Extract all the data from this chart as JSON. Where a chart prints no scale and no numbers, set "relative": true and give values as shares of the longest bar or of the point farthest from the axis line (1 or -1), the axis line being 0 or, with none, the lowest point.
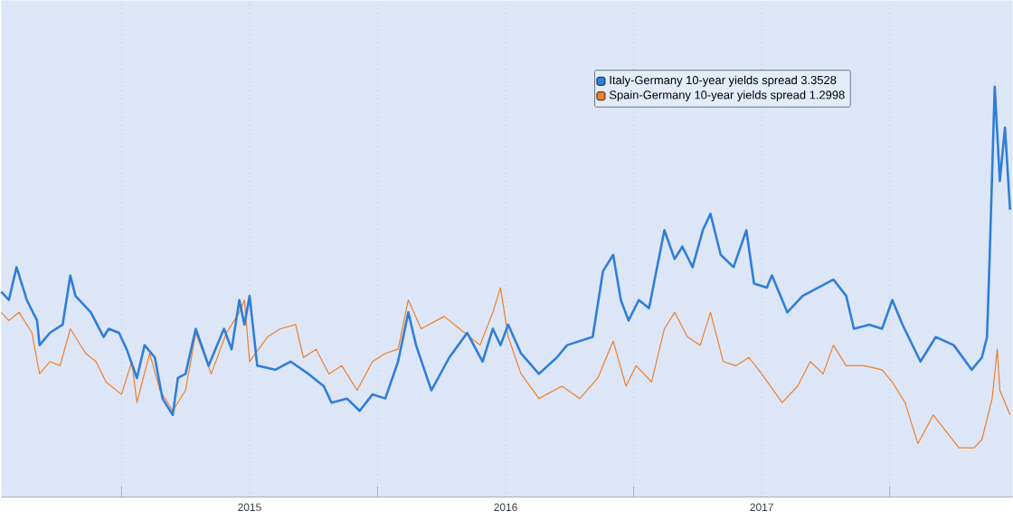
{
  "chart_data": {
    "type": "line",
    "relative": true,
    "grid": true,
    "legend": "top right",
    "marker": "none",
    "line_style": "solid",
    "xlim": [
      2014.53,
      2018.48
    ],
    "xticks": [
      {
        "value": 2015,
        "label": null
      },
      {
        "value": 2015.5,
        "label": "2015"
      },
      {
        "value": 2016,
        "label": null
      },
      {
        "value": 2016.5,
        "label": "2016"
      },
      {
        "value": 2017,
        "label": null
      },
      {
        "value": 2017.5,
        "label": "2017"
      },
      {
        "value": 2018,
        "label": null
      }
    ],
    "series": [
      {
        "name": "Italy-Germany 10-year yields spread 3.3528",
        "color": "#2f7ed8",
        "x": [
          2014.53,
          2014.56,
          2014.59,
          2014.63,
          2014.67,
          2014.68,
          2014.72,
          2014.77,
          2014.8,
          2014.82,
          2014.88,
          2014.93,
          2014.95,
          2014.99,
          2015.02,
          2015.06,
          2015.09,
          2015.13,
          2015.16,
          2015.2,
          2015.22,
          2015.25,
          2015.29,
          2015.34,
          2015.4,
          2015.43,
          2015.46,
          2015.48,
          2015.5,
          2015.53,
          2015.6,
          2015.66,
          2015.73,
          2015.79,
          2015.82,
          2015.88,
          2015.93,
          2015.98,
          2016.03,
          2016.08,
          2016.12,
          2016.15,
          2016.21,
          2016.28,
          2016.35,
          2016.41,
          2016.45,
          2016.48,
          2016.51,
          2016.56,
          2016.63,
          2016.7,
          2016.74,
          2016.84,
          2016.88,
          2016.92,
          2016.95,
          2016.98,
          2017.02,
          2017.06,
          2017.12,
          2017.16,
          2017.19,
          2017.23,
          2017.27,
          2017.3,
          2017.34,
          2017.39,
          2017.44,
          2017.47,
          2017.52,
          2017.54,
          2017.6,
          2017.66,
          2017.72,
          2017.78,
          2017.83,
          2017.86,
          2017.92,
          2017.97,
          2018.01,
          2018.05,
          2018.12,
          2018.18,
          2018.25,
          2018.32,
          2018.36,
          2018.38,
          2018.39,
          2018.41,
          2018.43,
          2018.45,
          2018.47
        ],
        "values": [
          0.5,
          0.48,
          0.56,
          0.48,
          0.43,
          0.37,
          0.4,
          0.42,
          0.54,
          0.49,
          0.45,
          0.39,
          0.41,
          0.4,
          0.36,
          0.29,
          0.37,
          0.34,
          0.24,
          0.2,
          0.29,
          0.3,
          0.41,
          0.32,
          0.41,
          0.36,
          0.48,
          0.42,
          0.49,
          0.32,
          0.31,
          0.33,
          0.3,
          0.27,
          0.23,
          0.24,
          0.21,
          0.25,
          0.24,
          0.33,
          0.45,
          0.37,
          0.26,
          0.34,
          0.4,
          0.33,
          0.41,
          0.37,
          0.42,
          0.35,
          0.3,
          0.34,
          0.37,
          0.39,
          0.55,
          0.59,
          0.48,
          0.43,
          0.48,
          0.46,
          0.65,
          0.58,
          0.61,
          0.56,
          0.65,
          0.69,
          0.59,
          0.56,
          0.65,
          0.52,
          0.51,
          0.54,
          0.45,
          0.49,
          0.51,
          0.53,
          0.49,
          0.41,
          0.42,
          0.41,
          0.48,
          0.42,
          0.33,
          0.39,
          0.37,
          0.31,
          0.34,
          0.39,
          0.58,
          1.0,
          0.77,
          0.9,
          0.7
        ]
      },
      {
        "name": "Spain-Germany 10-year yields spread 1.2998",
        "color": "#f07f2a",
        "x": [
          2014.53,
          2014.56,
          2014.6,
          2014.65,
          2014.68,
          2014.72,
          2014.76,
          2014.8,
          2014.86,
          2014.9,
          2014.94,
          2015.0,
          2015.04,
          2015.06,
          2015.11,
          2015.15,
          2015.2,
          2015.25,
          2015.29,
          2015.35,
          2015.41,
          2015.46,
          2015.48,
          2015.5,
          2015.57,
          2015.62,
          2015.68,
          2015.71,
          2015.76,
          2015.81,
          2015.86,
          2015.92,
          2015.98,
          2016.03,
          2016.08,
          2016.12,
          2016.17,
          2016.26,
          2016.32,
          2016.4,
          2016.45,
          2016.48,
          2016.51,
          2016.56,
          2016.63,
          2016.72,
          2016.79,
          2016.86,
          2016.92,
          2016.97,
          2017.01,
          2017.07,
          2017.12,
          2017.16,
          2017.21,
          2017.26,
          2017.3,
          2017.35,
          2017.4,
          2017.45,
          2017.5,
          2017.58,
          2017.64,
          2017.69,
          2017.74,
          2017.78,
          2017.83,
          2017.9,
          2017.97,
          2018.01,
          2018.06,
          2018.11,
          2018.17,
          2018.22,
          2018.27,
          2018.33,
          2018.36,
          2018.4,
          2018.42,
          2018.43,
          2018.47
        ],
        "values": [
          0.45,
          0.43,
          0.45,
          0.4,
          0.3,
          0.33,
          0.32,
          0.41,
          0.35,
          0.33,
          0.28,
          0.25,
          0.33,
          0.23,
          0.35,
          0.26,
          0.21,
          0.26,
          0.4,
          0.3,
          0.4,
          0.45,
          0.48,
          0.33,
          0.39,
          0.41,
          0.42,
          0.34,
          0.36,
          0.3,
          0.32,
          0.26,
          0.33,
          0.35,
          0.36,
          0.48,
          0.41,
          0.44,
          0.41,
          0.37,
          0.45,
          0.51,
          0.39,
          0.3,
          0.24,
          0.27,
          0.24,
          0.29,
          0.38,
          0.27,
          0.32,
          0.28,
          0.41,
          0.45,
          0.39,
          0.37,
          0.45,
          0.33,
          0.32,
          0.34,
          0.3,
          0.23,
          0.27,
          0.33,
          0.3,
          0.37,
          0.32,
          0.32,
          0.31,
          0.28,
          0.23,
          0.13,
          0.2,
          0.16,
          0.12,
          0.12,
          0.14,
          0.24,
          0.36,
          0.26,
          0.2
        ]
      }
    ]
  }
}
